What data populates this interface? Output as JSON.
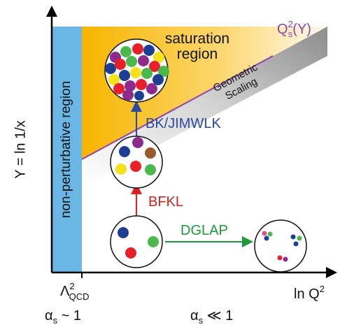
{
  "axes": {
    "y_label": "Y = ln 1/x",
    "x_label_main": "ln Q",
    "x_label_sup": "2",
    "x_tick_main": "Λ",
    "x_tick_sup": "2",
    "x_tick_sub": "QCD"
  },
  "regions": {
    "nonperturbative": "non-perturbative region",
    "saturation_line1": "saturation",
    "saturation_line2": "region",
    "geometric_line1": "Geometric",
    "geometric_line2": "Scaling"
  },
  "saturation_curve_label": {
    "main": "Q",
    "sub": "s",
    "sup": "2",
    "tail": "(Y)"
  },
  "evolution_labels": {
    "bk_jimwlk": "BK/JIMWLK",
    "bfkl": "BFKL",
    "dglap": "DGLAP"
  },
  "coupling": {
    "left_alpha": "α",
    "left_sub": "s",
    "left_rel": " ~ 1",
    "right_alpha": "α",
    "right_sub": "s",
    "right_rel": " ≪ 1"
  },
  "colors": {
    "nonperturbative_band": "#6ab7e6",
    "saturation_orange": "#f7b500",
    "saturation_line": "#8e44ad",
    "bk_label": "#2e4a9e",
    "bfkl_label": "#e02020",
    "dglap_label": "#1f9a3a",
    "parton_blue": "#1c3f94",
    "parton_red": "#e8202a",
    "parton_green": "#4ab84a",
    "parton_yellow": "#f5e21a",
    "parton_purple": "#8e2a8e",
    "parton_brown": "#9a5a2a",
    "parton_pink": "#e04a9a"
  }
}
